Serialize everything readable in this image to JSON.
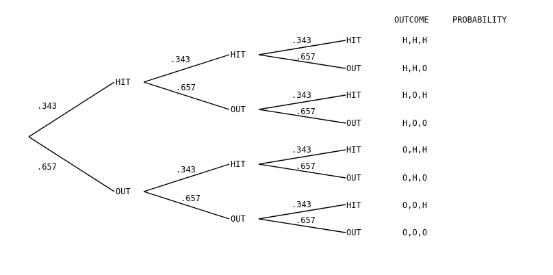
{
  "headers": {
    "outcome": "OUTCOME",
    "probability": "PROBABILITY"
  },
  "level1": {
    "hit": {
      "label": "HIT",
      "prob": ".343"
    },
    "out": {
      "label": "OUT",
      "prob": ".657"
    }
  },
  "level2": [
    {
      "label": "HIT",
      "prob": ".343"
    },
    {
      "label": "OUT",
      "prob": ".657"
    },
    {
      "label": "HIT",
      "prob": ".343"
    },
    {
      "label": "OUT",
      "prob": ".657"
    }
  ],
  "level3": [
    {
      "label": "HIT",
      "prob": ".343",
      "outcome": "H,H,H"
    },
    {
      "label": "OUT",
      "prob": ".657",
      "outcome": "H,H,O"
    },
    {
      "label": "HIT",
      "prob": ".343",
      "outcome": "H,O,H"
    },
    {
      "label": "OUT",
      "prob": ".657",
      "outcome": "H,O,O"
    },
    {
      "label": "HIT",
      "prob": ".343",
      "outcome": "O,H,H"
    },
    {
      "label": "OUT",
      "prob": ".657",
      "outcome": "O,H,O"
    },
    {
      "label": "HIT",
      "prob": ".343",
      "outcome": "O,O,H"
    },
    {
      "label": "OUT",
      "prob": ".657",
      "outcome": "O,O,O"
    }
  ]
}
